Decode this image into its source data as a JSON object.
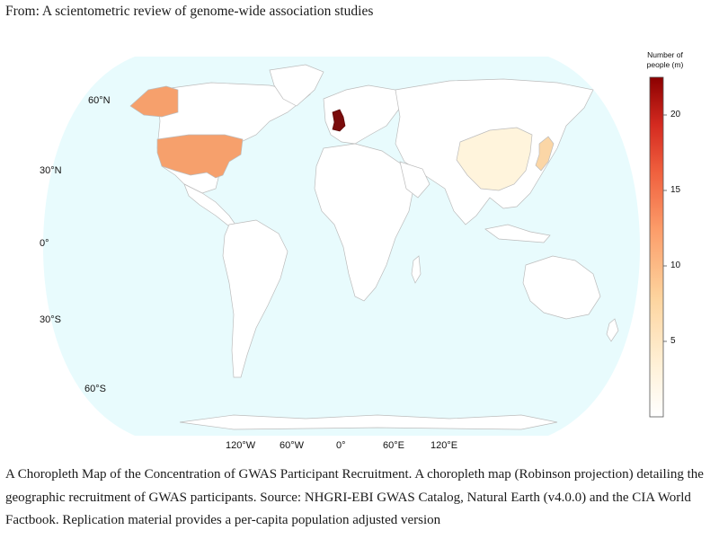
{
  "header": {
    "from_text": "From: A scientometric review of genome-wide association studies"
  },
  "map": {
    "projection": "Robinson",
    "ocean_color": "#e8fbfd",
    "land_color": "#ffffff",
    "border_color": "#bcbcbc",
    "lat_labels": [
      {
        "id": "60n",
        "text": "60°N"
      },
      {
        "id": "30n",
        "text": "30°N"
      },
      {
        "id": "0",
        "text": "0°"
      },
      {
        "id": "30s",
        "text": "30°S"
      },
      {
        "id": "60s",
        "text": "60°S"
      }
    ],
    "lon_labels": [
      {
        "id": "120w",
        "text": "120°W"
      },
      {
        "id": "60w",
        "text": "60°W"
      },
      {
        "id": "0",
        "text": "0°"
      },
      {
        "id": "60e",
        "text": "60°E"
      },
      {
        "id": "120e",
        "text": "120°E"
      }
    ],
    "highlighted_regions": [
      {
        "name": "United Kingdom",
        "color": "#7a0c0c"
      },
      {
        "name": "United States",
        "color": "#f6a06c"
      },
      {
        "name": "Alaska (United States)",
        "color": "#f6a06c"
      },
      {
        "name": "Japan",
        "color": "#fbd6a6"
      },
      {
        "name": "China",
        "color": "#fff4dc"
      }
    ]
  },
  "legend": {
    "title_line1": "Number of",
    "title_line2": "people (m)",
    "ticks": [
      {
        "id": "20",
        "text": "20"
      },
      {
        "id": "15",
        "text": "15"
      },
      {
        "id": "10",
        "text": "10"
      },
      {
        "id": "5",
        "text": "5"
      }
    ],
    "colors": [
      "#ffffff",
      "#fff1d8",
      "#fdd49e",
      "#fc9d6a",
      "#f0603e",
      "#d42a20",
      "#8b0000"
    ]
  },
  "caption": {
    "text": "A Choropleth Map of the Concentration of GWAS Participant Recruitment. A choropleth map (Robinson projection) detailing the geographic recruitment of GWAS participants. Source: NHGRI-EBI GWAS Catalog, Natural Earth (v4.0.0) and the CIA World Factbook. Replication material provides a per-capita population adjusted version"
  }
}
